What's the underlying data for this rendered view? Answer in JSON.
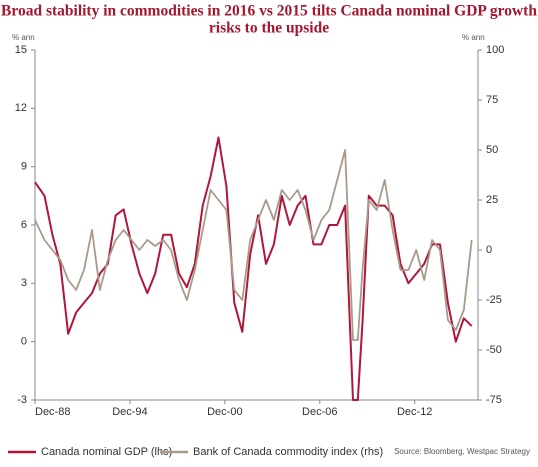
{
  "chart_data": {
    "type": "line",
    "title": [
      "Broad stability in commodities in 2016 vs 2015 tilts Canada nominal GDP growth",
      "risks to the upside"
    ],
    "y_label": "% ann",
    "y2_label": "% ann",
    "source": "Source: Bloomberg, Westpac Strategy",
    "x": [
      1988.9,
      1989.5,
      1990.0,
      1990.5,
      1991.0,
      1991.5,
      1992.0,
      1992.5,
      1993.0,
      1993.5,
      1994.0,
      1994.5,
      1995.0,
      1995.5,
      1996.0,
      1996.5,
      1997.0,
      1997.5,
      1998.0,
      1998.5,
      1999.0,
      1999.5,
      2000.0,
      2000.5,
      2001.0,
      2001.5,
      2002.0,
      2002.5,
      2003.0,
      2003.5,
      2004.0,
      2004.5,
      2005.0,
      2005.5,
      2006.0,
      2006.5,
      2007.0,
      2007.5,
      2008.0,
      2008.5,
      2009.0,
      2009.3,
      2009.6,
      2010.0,
      2010.5,
      2011.0,
      2011.5,
      2012.0,
      2012.5,
      2013.0,
      2013.5,
      2014.0,
      2014.5,
      2015.0,
      2015.5,
      2016.0,
      2016.5
    ],
    "series": [
      {
        "name": "Canada nominal GDP (lhs)",
        "color": "#b0163a",
        "axis": "y",
        "values": [
          8.2,
          7.5,
          5.5,
          4,
          0.4,
          1.5,
          2,
          2.5,
          3.5,
          4,
          6.5,
          6.8,
          5,
          3.5,
          2.5,
          3.5,
          5.5,
          5.5,
          3.5,
          2.8,
          4,
          7,
          8.5,
          10.5,
          8,
          2,
          0.5,
          4.5,
          6.5,
          4,
          5,
          7.5,
          6,
          7,
          7.5,
          5,
          5,
          6,
          6,
          7,
          -3,
          -3,
          1,
          7.5,
          7,
          7,
          6.5,
          4,
          3,
          3.5,
          4,
          5,
          5,
          2,
          0,
          1.2,
          0.8
        ]
      },
      {
        "name": "Bank of Canada commodity index (rhs)",
        "color": "#a89a8a",
        "axis": "y2",
        "values": [
          15,
          5,
          0,
          -5,
          -15,
          -20,
          -10,
          10,
          -20,
          -5,
          5,
          10,
          5,
          0,
          5,
          2,
          5,
          0,
          -15,
          -25,
          -10,
          10,
          30,
          25,
          20,
          -20,
          -25,
          5,
          15,
          25,
          15,
          30,
          25,
          30,
          20,
          5,
          15,
          20,
          35,
          50,
          -45,
          -45,
          -10,
          25,
          20,
          35,
          10,
          -10,
          -10,
          0,
          -15,
          5,
          0,
          -35,
          -40,
          -30,
          5
        ]
      }
    ],
    "xlim": [
      1988.9,
      2016.9
    ],
    "xticks": [
      {
        "value": 1988.9,
        "label": "Dec-88"
      },
      {
        "value": 1994.9,
        "label": "Dec-94"
      },
      {
        "value": 2000.9,
        "label": "Dec-00"
      },
      {
        "value": 2006.9,
        "label": "Dec-06"
      },
      {
        "value": 2012.9,
        "label": "Dec-12"
      }
    ],
    "ylim": [
      -3,
      15
    ],
    "yticks": [
      -3,
      0,
      3,
      6,
      9,
      12,
      15
    ],
    "y2lim": [
      -75,
      100
    ],
    "y2ticks": [
      -75,
      -50,
      -25,
      0,
      25,
      50,
      75,
      100
    ]
  }
}
